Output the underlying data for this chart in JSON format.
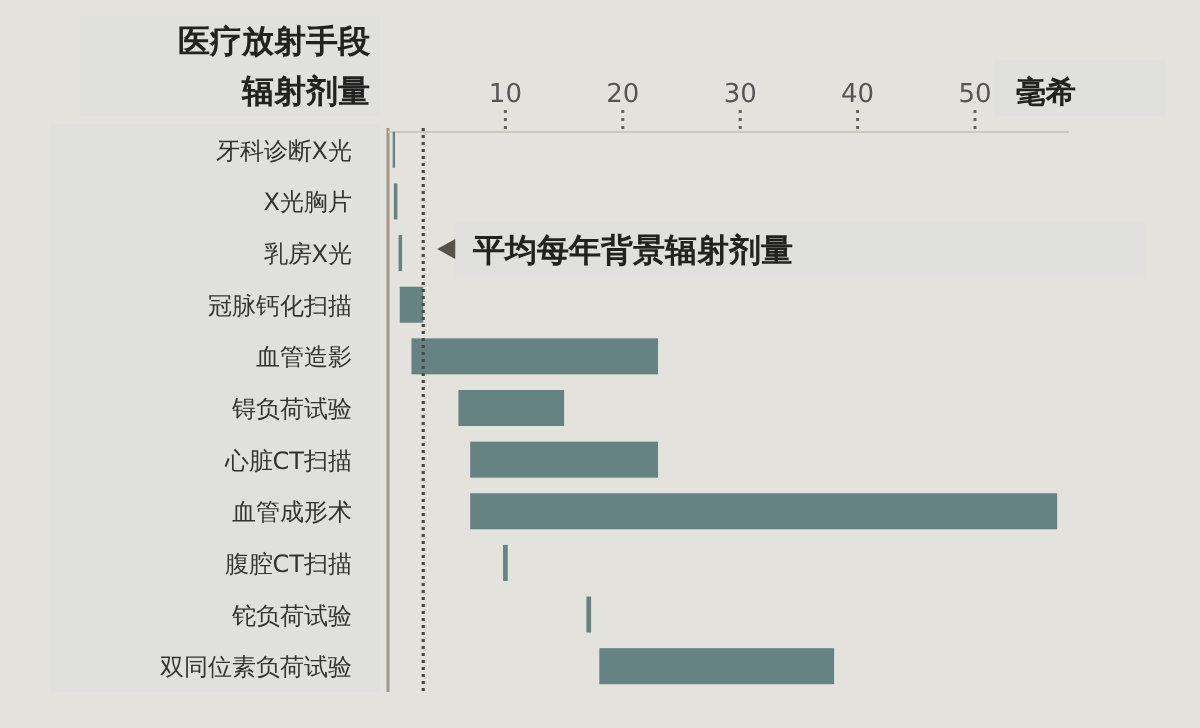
{
  "chart_data": {
    "type": "bar",
    "orientation": "horizontal",
    "title": "医疗放射手段",
    "subtitle": "辐射剂量",
    "xlabel": "毫希",
    "categories": [
      "牙科诊断X光",
      "X光胸片",
      "乳房X光",
      "冠脉钙化扫描",
      "血管造影",
      "锝负荷试验",
      "心脏CT扫描",
      "血管成形术",
      "腹腔CT扫描",
      "铊负荷试验",
      "双同位素负荷试验"
    ],
    "base": [
      0.4,
      0.5,
      0.9,
      1,
      2,
      6,
      7,
      7,
      9.8,
      16.9,
      18
    ],
    "values": [
      0.2,
      0.3,
      0.3,
      2,
      21,
      9,
      16,
      50,
      0.4,
      0.4,
      20
    ],
    "color": "#668383",
    "xlim": [
      0,
      58
    ],
    "xticks": [
      10,
      20,
      30,
      40,
      50
    ],
    "ref_lines": [
      {
        "axis": "x",
        "value": 3,
        "label": "平均每年背景辐射剂量",
        "line_style": "dotted",
        "color": "#4a4a40"
      }
    ]
  }
}
